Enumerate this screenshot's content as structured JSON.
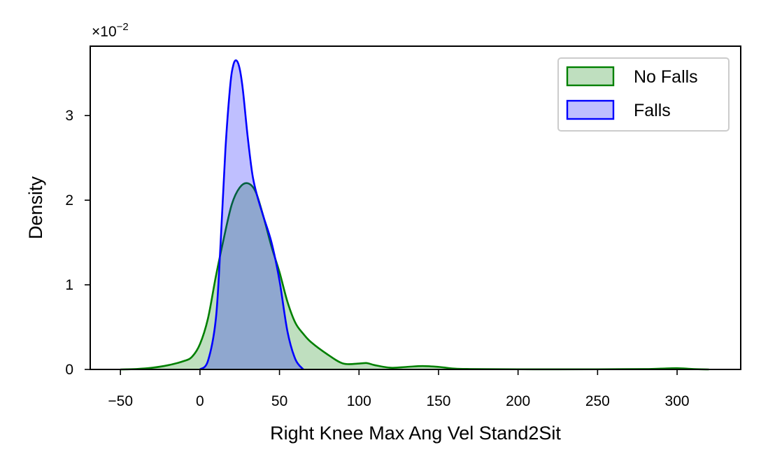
{
  "chart_data": {
    "type": "area",
    "xlabel": "Right Knee Max Ang Vel Stand2Sit",
    "ylabel": "Density",
    "y_offset_text": "×10",
    "y_offset_exponent": "−2",
    "xlim": [
      -69,
      340
    ],
    "ylim": [
      0,
      3.82
    ],
    "x_ticks": [
      -50,
      0,
      50,
      100,
      150,
      200,
      250,
      300
    ],
    "x_tick_labels": [
      "−50",
      "0",
      "50",
      "100",
      "150",
      "200",
      "250",
      "300"
    ],
    "y_ticks": [
      0,
      1,
      2,
      3
    ],
    "y_tick_labels": [
      "0",
      "1",
      "2",
      "3"
    ],
    "grid": false,
    "legend_position": "top-right",
    "series": [
      {
        "name": "No Falls",
        "line_color": "#008000",
        "fill_color": "#008000",
        "fill_opacity": 0.25,
        "x": [
          -50,
          -40,
          -30,
          -20,
          -10,
          -5,
          0,
          5,
          10,
          15,
          20,
          25,
          30,
          35,
          40,
          45,
          50,
          55,
          60,
          65,
          70,
          80,
          90,
          100,
          105,
          110,
          120,
          130,
          140,
          150,
          160,
          170,
          200,
          250,
          280,
          290,
          300,
          310,
          320
        ],
        "y": [
          0,
          0.005,
          0.02,
          0.05,
          0.1,
          0.15,
          0.3,
          0.6,
          1.1,
          1.55,
          1.95,
          2.15,
          2.2,
          2.1,
          1.8,
          1.45,
          1.15,
          0.8,
          0.55,
          0.42,
          0.32,
          0.18,
          0.07,
          0.07,
          0.075,
          0.05,
          0.02,
          0.03,
          0.04,
          0.03,
          0.01,
          0.005,
          0.002,
          0.002,
          0.005,
          0.01,
          0.015,
          0.005,
          0
        ]
      },
      {
        "name": "Falls",
        "line_color": "#0000ff",
        "fill_color": "#0000ff",
        "fill_opacity": 0.25,
        "x": [
          0,
          5,
          10,
          13,
          16,
          19,
          21,
          23,
          25,
          27,
          30,
          33,
          36,
          40,
          45,
          50,
          55,
          60,
          65
        ],
        "y": [
          0,
          0.1,
          0.6,
          1.5,
          2.6,
          3.35,
          3.6,
          3.65,
          3.55,
          3.3,
          2.75,
          2.3,
          2.05,
          1.8,
          1.5,
          1.05,
          0.45,
          0.12,
          0
        ]
      }
    ]
  }
}
